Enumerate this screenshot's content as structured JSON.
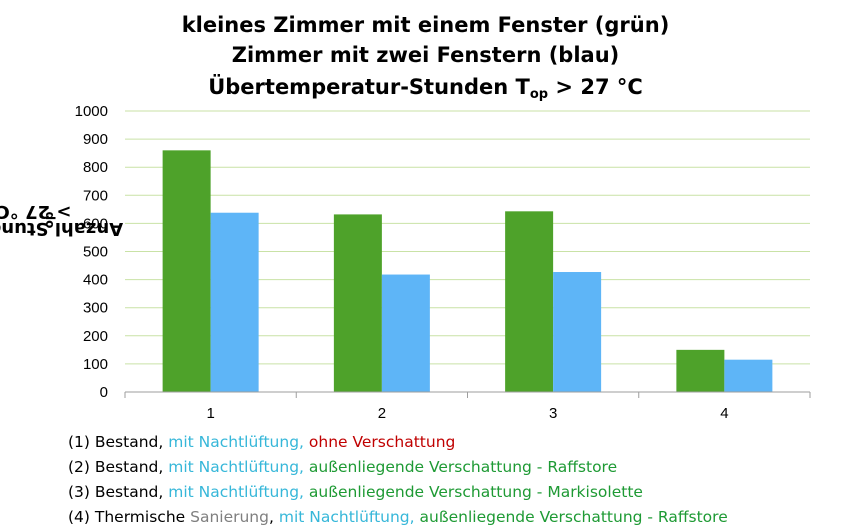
{
  "chart_data": {
    "type": "bar",
    "title_lines": [
      "kleines Zimmer mit einem Fenster (grün)",
      "Zimmer mit zwei Fenstern (blau)"
    ],
    "title3": {
      "prefix": "Übertemperatur-Stunden T",
      "sub": "op",
      "suffix": " > 27 °C"
    },
    "ylabel": {
      "prefix": "Anzahl Stunden  T",
      "sub": "op",
      "suffix": " > 27 °C"
    },
    "categories": [
      "1",
      "2",
      "3",
      "4"
    ],
    "series": [
      {
        "color": "#4ea22a",
        "values": [
          860,
          632,
          643,
          150
        ]
      },
      {
        "color": "#5eb5f7",
        "values": [
          638,
          418,
          427,
          115
        ]
      }
    ],
    "ylim": [
      0,
      1000
    ],
    "yticks": [
      "0",
      "100",
      "200",
      "300",
      "400",
      "500",
      "600",
      "700",
      "800",
      "900",
      "1000"
    ],
    "grid": true,
    "gridColor": "#c9e2a6"
  },
  "legend": [
    {
      "a": "(1) Bestand, ",
      "b": "mit Nachtlüftung",
      "c": ", ",
      "d": "ohne Verschattung"
    },
    {
      "a": "(2) Bestand, ",
      "b": "mit Nachtlüftung",
      "c": ", ",
      "d": "außenliegende Verschattung  - Raffstore"
    },
    {
      "a": "(3) Bestand, ",
      "b": "mit Nachtlüftung",
      "c": ", ",
      "d": "außenliegende Verschattung - Markisolette"
    },
    {
      "a0": "(4) Thermische ",
      "a1": "Sanierung",
      "b": "mit Nachtlüftung",
      "c": ", ",
      "d": "außenliegende Verschattung - Raffstore"
    }
  ]
}
